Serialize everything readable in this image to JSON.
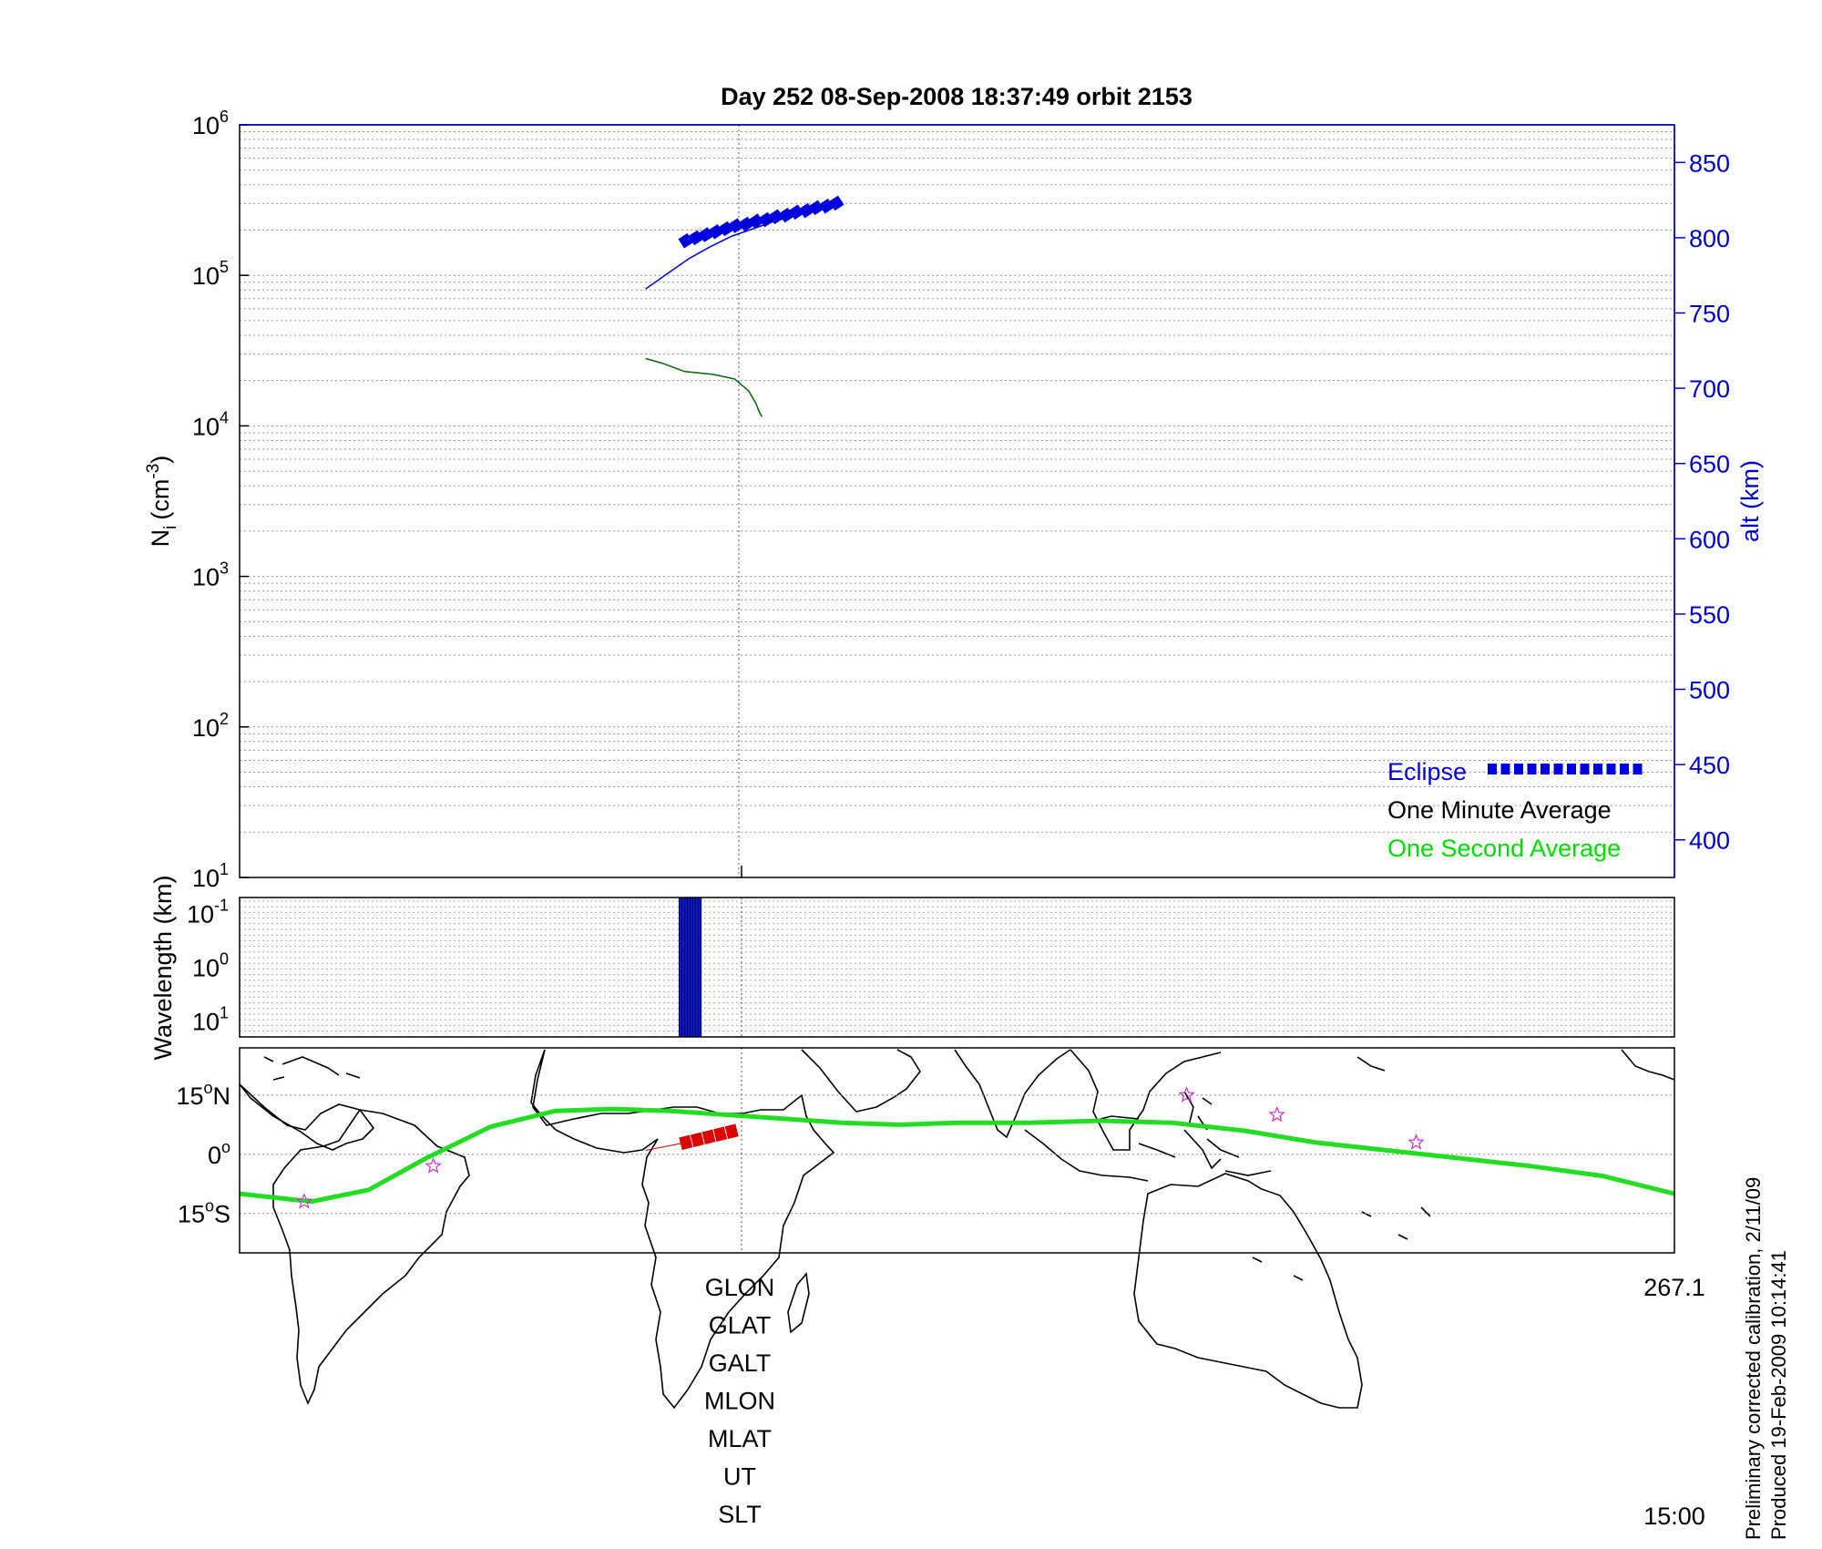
{
  "title": "Day 252  08-Sep-2008 18:37:49   orbit 2153",
  "footer": {
    "line1": "Preliminary corrected calibration, 2/11/09",
    "line2": "Produced 19-Feb-2009 10:14:41"
  },
  "colors": {
    "eclipse": "#0000dd",
    "one_minute": "#000000",
    "one_second": "#00dd00",
    "density_trace": "#006600",
    "alt_trace": "#0000cc",
    "map_track": "#22dd22",
    "map_eclipse": "#dd0000",
    "stars": "#cc33cc"
  },
  "chart_data": [
    {
      "type": "line",
      "panel": "density",
      "ylabel": "N",
      "ylabel_sub": "i",
      "ylabel_unit_base": "(cm",
      "ylabel_unit_exp": "-3",
      "ylabel_unit_close": ")",
      "yscale": "log",
      "ylim": [
        10,
        1000000
      ],
      "y_ticks": [
        {
          "base": "10",
          "exp": "1",
          "value": 10
        },
        {
          "base": "10",
          "exp": "2",
          "value": 100
        },
        {
          "base": "10",
          "exp": "3",
          "value": 1000
        },
        {
          "base": "10",
          "exp": "4",
          "value": 10000
        },
        {
          "base": "10",
          "exp": "5",
          "value": 100000
        },
        {
          "base": "10",
          "exp": "6",
          "value": 1000000
        }
      ],
      "y2label": "alt (km)",
      "y2lim": [
        375,
        875
      ],
      "y2_ticks": [
        400,
        450,
        500,
        550,
        600,
        650,
        700,
        750,
        800,
        850
      ],
      "xlim": [
        0,
        1
      ],
      "grid": true,
      "legend_position": "bottom-right",
      "legend": [
        {
          "label": "Eclipse",
          "style": "squares"
        },
        {
          "label": "One Minute Average",
          "style": "none"
        },
        {
          "label": "One Second Average",
          "style": "none"
        }
      ],
      "series": [
        {
          "axis": "alt",
          "style": "line",
          "x": [
            0.283,
            0.298,
            0.313,
            0.328,
            0.343,
            0.358,
            0.373,
            0.388,
            0.403,
            0.418,
            0.42
          ],
          "y": [
            766,
            776,
            786,
            794,
            801,
            806,
            811,
            815,
            819,
            823,
            824
          ]
        },
        {
          "axis": "alt",
          "style": "eclipse",
          "x": [
            0.311,
            0.318,
            0.325,
            0.332,
            0.339,
            0.346,
            0.353,
            0.36,
            0.367,
            0.374,
            0.381,
            0.388,
            0.395,
            0.402,
            0.409,
            0.416
          ],
          "y": [
            798,
            800,
            802,
            804,
            806,
            808,
            809,
            811,
            812,
            814,
            815,
            817,
            818,
            820,
            821,
            823
          ]
        },
        {
          "axis": "density",
          "style": "line",
          "x": [
            0.283,
            0.295,
            0.31,
            0.33,
            0.345,
            0.355,
            0.36,
            0.362,
            0.364
          ],
          "y": [
            28000,
            26000,
            23000,
            22000,
            20500,
            17000,
            14000,
            12500,
            11500
          ]
        }
      ]
    },
    {
      "type": "bar",
      "panel": "wavelength",
      "ylabel": "Wavelength (km)",
      "yscale": "log",
      "y_ticks": [
        {
          "base": "10",
          "exp": "-1",
          "value": 0.1
        },
        {
          "base": "10",
          "exp": "0",
          "value": 1
        },
        {
          "base": "10",
          "exp": "1",
          "value": 10
        }
      ],
      "ylim": [
        0.05,
        20
      ],
      "xlim": [
        0,
        1
      ],
      "grid": true,
      "bands": [
        {
          "x_start": 0.306,
          "x_end": 0.322
        }
      ]
    },
    {
      "type": "line",
      "panel": "map",
      "y_ticks": [
        {
          "label": "15",
          "deg": "o",
          "hemi": "N",
          "lat": 15
        },
        {
          "label": "0",
          "deg": "o",
          "hemi": "",
          "lat": 0
        },
        {
          "label": "15",
          "deg": "o",
          "hemi": "S",
          "lat": -15
        }
      ],
      "ylim": [
        -25,
        27
      ],
      "xlim": [
        0,
        1
      ],
      "track": {
        "x": [
          0.0,
          0.05,
          0.09,
          0.13,
          0.175,
          0.22,
          0.26,
          0.3,
          0.34,
          0.38,
          0.42,
          0.46,
          0.5,
          0.55,
          0.6,
          0.65,
          0.7,
          0.75,
          0.8,
          0.85,
          0.9,
          0.95,
          1.0
        ],
        "lat": [
          -10,
          -12,
          -9,
          -1,
          7,
          11,
          11.5,
          11,
          10,
          9,
          8,
          7.5,
          8,
          8,
          8.5,
          8,
          6,
          3,
          1,
          -1,
          -3,
          -5.5,
          -10
        ]
      },
      "eclipse": {
        "x": [
          0.311,
          0.319,
          0.327,
          0.335,
          0.343
        ],
        "lat": [
          3,
          3.7,
          4.4,
          5.1,
          5.8
        ]
      },
      "eclipse_line": {
        "x": [
          0.283,
          0.311
        ],
        "lat": [
          1,
          3
        ]
      },
      "stars": {
        "x": [
          0.045,
          0.135,
          0.66,
          0.723,
          0.82
        ],
        "lat": [
          -12,
          -3,
          15,
          10,
          3
        ]
      }
    }
  ],
  "readout": {
    "labels": [
      "GLON",
      "GLAT",
      "GALT",
      "MLON",
      "MLAT",
      "UT",
      "SLT"
    ],
    "right_top": "267.1",
    "right_bottom": "15:00"
  }
}
